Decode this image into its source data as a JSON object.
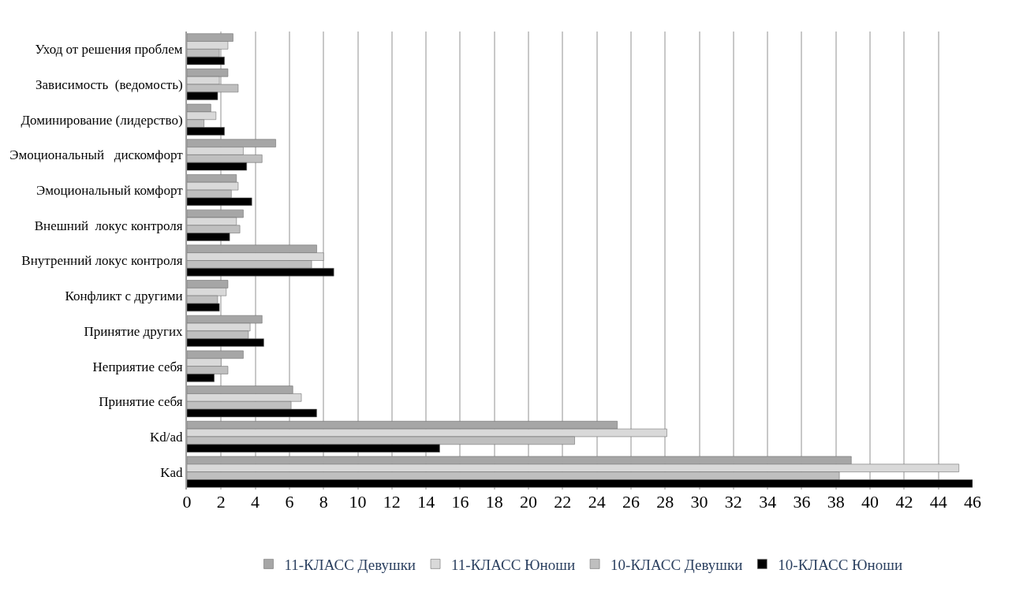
{
  "chart_data": {
    "type": "bar",
    "orientation": "horizontal",
    "categories": [
      "Уход от решения проблем",
      "Зависимость  (ведомость)",
      "Доминирование (лидерство)",
      "Эмоциональный   дискомфорт",
      "Эмоциональный комфорт",
      "Внешний  локус контроля",
      "Внутренний локус контроля",
      "Конфликт с другими",
      "Принятие других",
      "Неприятие себя",
      "Принятие себя",
      "Kd/ad",
      "Kad"
    ],
    "series": [
      {
        "name": "11-КЛАСС Девушки",
        "color": "#a6a6a6",
        "values": [
          2.7,
          2.4,
          1.4,
          5.2,
          2.9,
          3.3,
          7.6,
          2.4,
          4.4,
          3.3,
          6.2,
          25.2,
          38.9
        ]
      },
      {
        "name": "11-КЛАСС Юноши",
        "color": "#d9d9d9",
        "values": [
          2.4,
          1.9,
          1.7,
          3.3,
          3.0,
          2.9,
          8.0,
          2.3,
          3.7,
          2.0,
          6.7,
          28.1,
          45.2
        ]
      },
      {
        "name": "10-КЛАСС Девушки",
        "color": "#bfbfbf",
        "values": [
          1.9,
          3.0,
          1.0,
          4.4,
          2.6,
          3.1,
          7.3,
          1.8,
          3.6,
          2.4,
          6.1,
          22.7,
          38.2
        ]
      },
      {
        "name": "10-КЛАСС Юноши",
        "color": "#000000",
        "values": [
          2.2,
          1.8,
          2.2,
          3.5,
          3.8,
          2.5,
          8.6,
          1.9,
          4.5,
          1.6,
          7.6,
          14.8,
          46.0
        ]
      }
    ],
    "xlim": [
      0,
      46
    ],
    "xticks": [
      0,
      2,
      4,
      6,
      8,
      10,
      12,
      14,
      16,
      18,
      20,
      22,
      24,
      26,
      28,
      30,
      32,
      34,
      36,
      38,
      40,
      42,
      44,
      46
    ],
    "grid": "x",
    "legend": "bottom"
  }
}
